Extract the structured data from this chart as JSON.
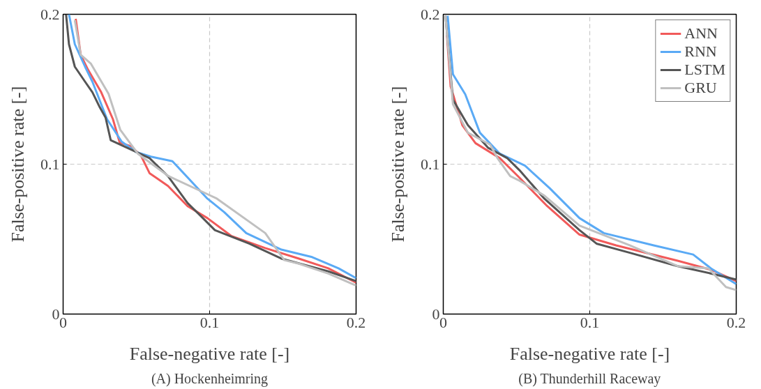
{
  "chart_data": [
    {
      "type": "line",
      "title": "(A) Hockenheimring",
      "xlabel": "False-negative rate [-]",
      "ylabel": "False-positive rate [-]",
      "xlim": [
        0,
        0.2
      ],
      "ylim": [
        0,
        0.2
      ],
      "xticks": [
        0,
        0.1,
        0.2
      ],
      "yticks": [
        0,
        0.1,
        0.2
      ],
      "grid": true,
      "legend": false,
      "line_style": "solid",
      "series": [
        {
          "color": "#f15a5a",
          "x": [
            0.0086,
            0.012,
            0.017,
            0.026,
            0.034,
            0.0386,
            0.046,
            0.053,
            0.059,
            0.0716,
            0.085,
            0.0985,
            0.115,
            0.138,
            0.161,
            0.181,
            0.2
          ],
          "values": [
            0.197,
            0.173,
            0.163,
            0.148,
            0.13,
            0.1145,
            0.112,
            0.106,
            0.094,
            0.0855,
            0.072,
            0.064,
            0.052,
            0.044,
            0.037,
            0.0305,
            0.021
          ]
        },
        {
          "color": "#5aaaf5",
          "x": [
            0.004,
            0.008,
            0.015,
            0.02,
            0.03,
            0.04,
            0.05,
            0.06,
            0.0746,
            0.0985,
            0.11,
            0.125,
            0.149,
            0.17,
            0.188,
            0.2
          ],
          "values": [
            0.2,
            0.18,
            0.165,
            0.155,
            0.13,
            0.115,
            0.108,
            0.105,
            0.102,
            0.077,
            0.068,
            0.054,
            0.043,
            0.038,
            0.0305,
            0.024
          ]
        },
        {
          "color": "#555555",
          "x": [
            0.002,
            0.004,
            0.008,
            0.015,
            0.02,
            0.025,
            0.029,
            0.0325,
            0.048,
            0.059,
            0.0716,
            0.085,
            0.0934,
            0.1036,
            0.127,
            0.149,
            0.181,
            0.2
          ],
          "values": [
            0.2,
            0.18,
            0.165,
            0.155,
            0.148,
            0.138,
            0.131,
            0.116,
            0.109,
            0.104,
            0.092,
            0.074,
            0.066,
            0.056,
            0.047,
            0.037,
            0.0285,
            0.022
          ]
        },
        {
          "color": "#c0c0c0",
          "x": [
            0.008,
            0.012,
            0.019,
            0.031,
            0.039,
            0.051,
            0.072,
            0.0985,
            0.105,
            0.138,
            0.143,
            0.151,
            0.161,
            0.181,
            0.2
          ],
          "values": [
            0.196,
            0.173,
            0.167,
            0.147,
            0.123,
            0.107,
            0.092,
            0.08,
            0.077,
            0.054,
            0.047,
            0.036,
            0.0336,
            0.027,
            0.019
          ]
        }
      ]
    },
    {
      "type": "line",
      "title": "(B) Thunderhill Raceway",
      "xlabel": "False-negative rate [-]",
      "ylabel": "False-positive rate [-]",
      "xlim": [
        0,
        0.2
      ],
      "ylim": [
        0,
        0.2
      ],
      "xticks": [
        0,
        0.1,
        0.2
      ],
      "yticks": [
        0,
        0.1,
        0.2
      ],
      "grid": true,
      "legend": "top right",
      "line_style": "solid",
      "series": [
        {
          "name": "ANN",
          "color": "#f15a5a",
          "x": [
            0.0025,
            0.005,
            0.013,
            0.022,
            0.0386,
            0.051,
            0.071,
            0.093,
            0.118,
            0.16,
            0.183,
            0.2
          ],
          "values": [
            0.186,
            0.152,
            0.126,
            0.114,
            0.104,
            0.092,
            0.072,
            0.053,
            0.0458,
            0.0356,
            0.0295,
            0.022
          ]
        },
        {
          "name": "RNN",
          "color": "#5aaaf5",
          "x": [
            0.003,
            0.0066,
            0.015,
            0.025,
            0.0386,
            0.0558,
            0.0726,
            0.093,
            0.1096,
            0.1437,
            0.1706,
            0.1827,
            0.2
          ],
          "values": [
            0.199,
            0.16,
            0.1466,
            0.121,
            0.107,
            0.099,
            0.084,
            0.064,
            0.054,
            0.0458,
            0.0397,
            0.0305,
            0.02
          ]
        },
        {
          "name": "LSTM",
          "color": "#555555",
          "x": [
            0.0015,
            0.0066,
            0.0168,
            0.0305,
            0.0437,
            0.052,
            0.069,
            0.093,
            0.1046,
            0.127,
            0.16,
            0.183,
            0.2
          ],
          "values": [
            0.199,
            0.143,
            0.126,
            0.111,
            0.104,
            0.096,
            0.077,
            0.056,
            0.047,
            0.041,
            0.032,
            0.027,
            0.023
          ]
        },
        {
          "name": "GRU",
          "color": "#c0c0c0",
          "x": [
            0.0015,
            0.0066,
            0.0168,
            0.032,
            0.037,
            0.0457,
            0.052,
            0.069,
            0.093,
            0.127,
            0.16,
            0.181,
            0.193,
            0.2
          ],
          "values": [
            0.199,
            0.14,
            0.121,
            0.113,
            0.104,
            0.092,
            0.089,
            0.079,
            0.059,
            0.046,
            0.032,
            0.0305,
            0.018,
            0.016
          ]
        }
      ]
    }
  ]
}
